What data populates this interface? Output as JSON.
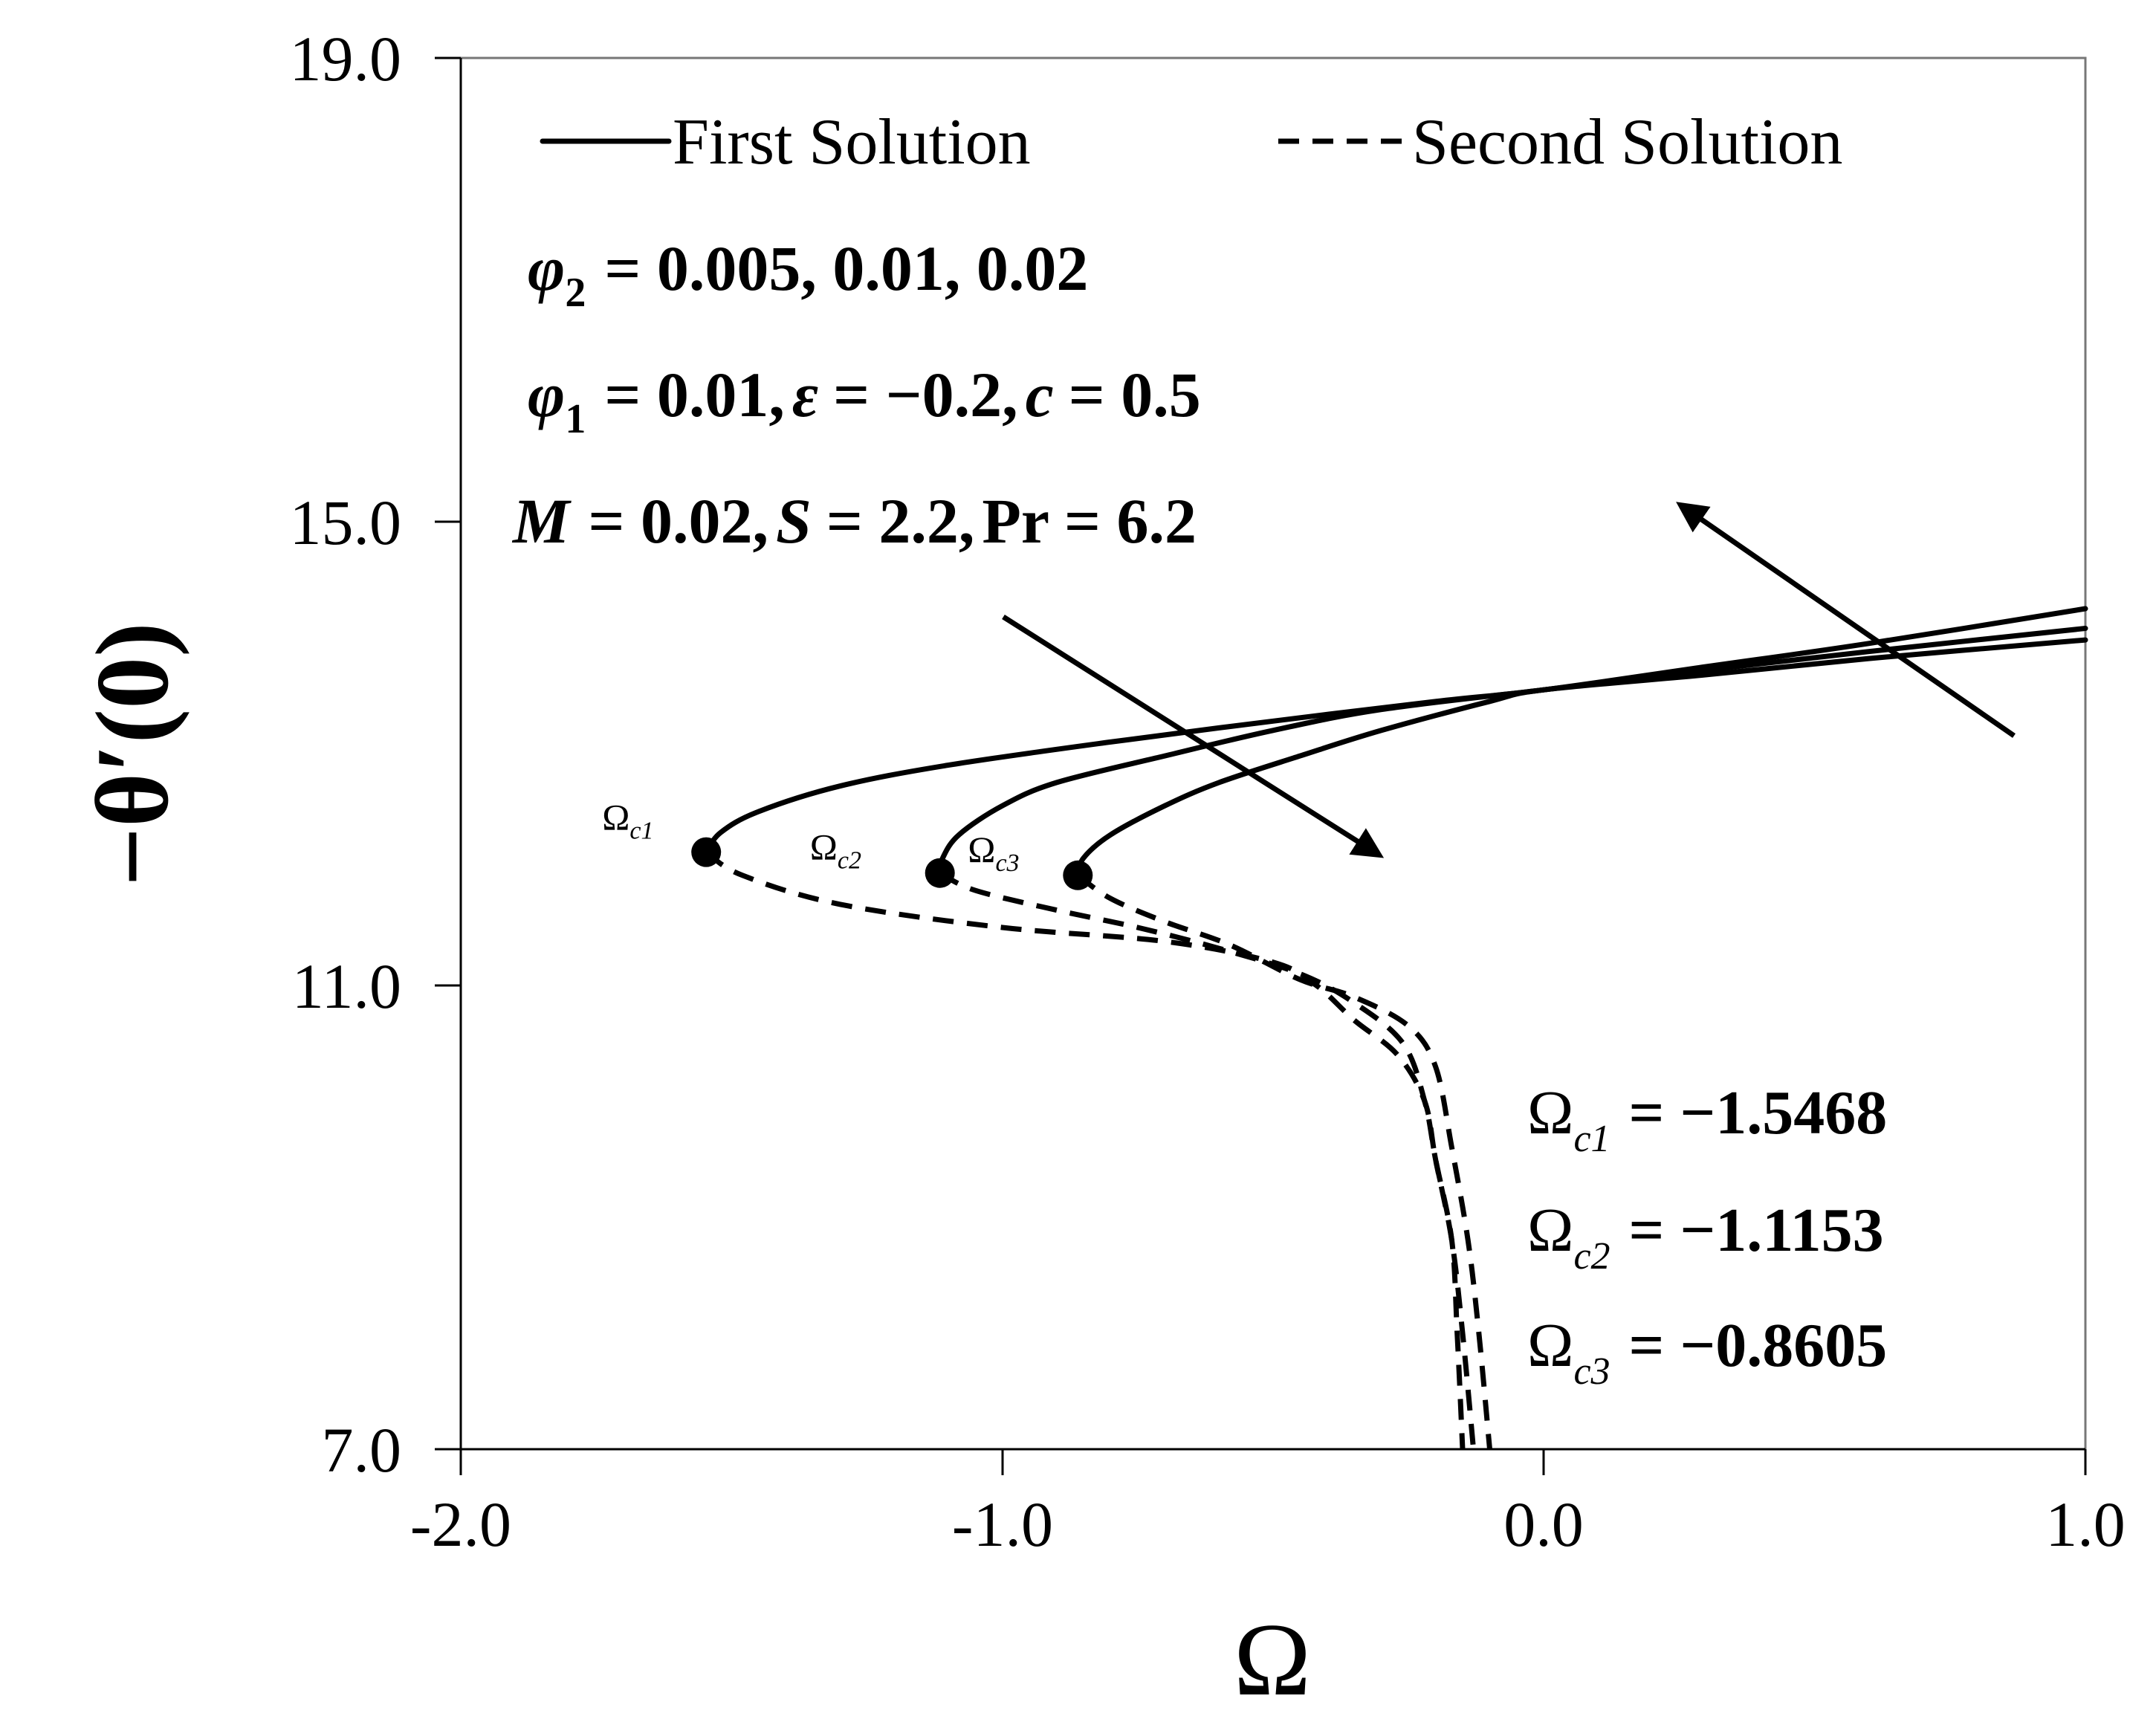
{
  "chart_data": {
    "type": "line",
    "title": "",
    "xlabel": "Ω",
    "ylabel": "−θ′(0)",
    "xlim": [
      -2.0,
      1.0
    ],
    "ylim": [
      7.0,
      19.0
    ],
    "x_ticks": [
      "-2.0",
      "-1.0",
      "0.0",
      "1.0"
    ],
    "y_ticks": [
      "7.0",
      "11.0",
      "15.0",
      "19.0"
    ],
    "grid": false,
    "legend_position": "top",
    "legend": [
      {
        "label": "First Solution",
        "style": "solid"
      },
      {
        "label": "Second Solution",
        "style": "dashed"
      }
    ],
    "parameters": {
      "line1": "= 0.005, 0.01, 0.02",
      "line2a": "= 0.01,",
      "line2b": "= −0.2,",
      "line2c": "= 0.5",
      "line3a": "= 0.02,",
      "line3b": "= 2.2,",
      "line3c": "= 6.2"
    },
    "critical_points": [
      {
        "label": "Ω",
        "sub": "c1",
        "value_text": "= −1.5468",
        "x": -1.5468,
        "y": 12.15
      },
      {
        "label": "Ω",
        "sub": "c2",
        "value_text": "= −1.1153",
        "x": -1.1153,
        "y": 11.97
      },
      {
        "label": "Ω",
        "sub": "c3",
        "value_text": "= −0.8605",
        "x": -0.8605,
        "y": 11.95
      }
    ],
    "series": [
      {
        "name": "First Solution",
        "phi2": 0.005,
        "x": [
          -1.5468,
          -1.52,
          -1.45,
          -1.3,
          -1.1,
          -0.8,
          -0.5,
          -0.2,
          0.0,
          0.3,
          0.6,
          1.0
        ],
        "y": [
          12.15,
          12.32,
          12.5,
          12.72,
          12.9,
          13.1,
          13.28,
          13.45,
          13.55,
          13.75,
          13.95,
          14.25
        ]
      },
      {
        "name": "First Solution",
        "phi2": 0.01,
        "x": [
          -1.1153,
          -1.11,
          -1.08,
          -1.0,
          -0.9,
          -0.7,
          -0.5,
          -0.3,
          0.0,
          0.3,
          0.6,
          1.0
        ],
        "y": [
          11.97,
          12.1,
          12.3,
          12.55,
          12.75,
          12.98,
          13.2,
          13.38,
          13.55,
          13.72,
          13.88,
          14.08
        ]
      },
      {
        "name": "First Solution",
        "phi2": 0.02,
        "x": [
          -0.8605,
          -0.85,
          -0.8,
          -0.7,
          -0.6,
          -0.45,
          -0.3,
          -0.1,
          0.0,
          0.3,
          0.6,
          1.0
        ],
        "y": [
          11.95,
          12.1,
          12.3,
          12.55,
          12.75,
          12.98,
          13.2,
          13.45,
          13.55,
          13.68,
          13.82,
          13.98
        ]
      },
      {
        "name": "Second Solution",
        "phi2": 0.005,
        "x": [
          -1.5468,
          -1.48,
          -1.3,
          -1.0,
          -0.7,
          -0.5,
          -0.42,
          -0.35,
          -0.27,
          -0.22,
          -0.2,
          -0.17,
          -0.16,
          -0.15
        ],
        "y": [
          12.15,
          11.95,
          11.7,
          11.5,
          11.38,
          11.2,
          11.0,
          10.7,
          10.4,
          10.0,
          9.5,
          8.8,
          8.0,
          7.0
        ]
      },
      {
        "name": "Second Solution",
        "phi2": 0.01,
        "x": [
          -1.1153,
          -1.05,
          -0.9,
          -0.75,
          -0.6,
          -0.45,
          -0.35,
          -0.26,
          -0.22,
          -0.2,
          -0.17,
          -0.15,
          -0.13
        ],
        "y": [
          11.97,
          11.82,
          11.65,
          11.5,
          11.32,
          11.1,
          10.85,
          10.5,
          10.0,
          9.5,
          8.8,
          8.0,
          7.0
        ]
      },
      {
        "name": "Second Solution",
        "phi2": 0.02,
        "x": [
          -0.8605,
          -0.8,
          -0.7,
          -0.58,
          -0.45,
          -0.35,
          -0.25,
          -0.2,
          -0.17,
          -0.14,
          -0.12,
          -0.1
        ],
        "y": [
          11.95,
          11.75,
          11.55,
          11.35,
          11.05,
          10.9,
          10.65,
          10.3,
          9.6,
          8.8,
          8.0,
          7.0
        ]
      }
    ]
  }
}
